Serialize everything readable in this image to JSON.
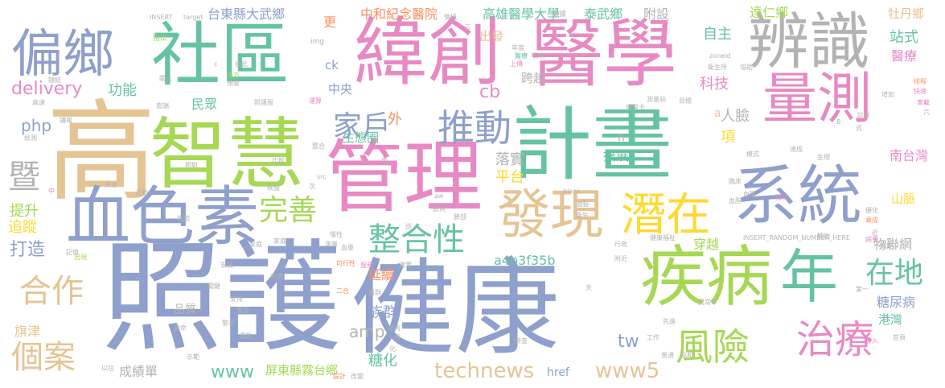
{
  "palette": [
    "#8ea0cb",
    "#a6d854",
    "#e78ac3",
    "#66c2a5",
    "#e5c494",
    "#b3b3b3",
    "#fc8d62",
    "#ffd92f"
  ],
  "words": {
    "zhaohu": "照護",
    "jiankang": "健康",
    "gao": "高",
    "guanli": "管理",
    "jihua": "計畫",
    "zhihui": "智慧",
    "shequ": "社區",
    "weichuang": "緯創",
    "yixue": "醫學",
    "bianshi": "辨識",
    "xuesesu": "血色素",
    "jibing": "疾病",
    "nian": "年",
    "xitong": "系統",
    "liangce": "量測",
    "pianxiang": "偏鄉",
    "faxian": "發現",
    "qianzai": "潛在",
    "zhengheixing": "整合性",
    "fengxian": "風險",
    "zhiliao": "治療",
    "tuidong": "推動",
    "jiahu": "家戶",
    "wanshan": "完善",
    "hezuo": "合作",
    "gean": "個案",
    "ji": "暨",
    "zaidi": "在地",
    "technews": "technews",
    "www5": "www5",
    "www": "www",
    "delivery": "delivery",
    "taidong_dawu": "台東縣大武鄉",
    "pingdong_wutai": "屏東縣霧台鄉",
    "gaoxiong_yixue": "高雄醫學大學",
    "zhonghe": "中和紀念醫院",
    "dazheng": "達仁鄉",
    "taiwu": "泰武鄉",
    "fushe": "附設",
    "mudan": "牡丹鄉",
    "zhanshi": "站式",
    "yiliao": "醫療",
    "zizhu": "自主",
    "keji": "科技",
    "renlian": "人臉",
    "xiang": "項",
    "nantaiwan": "南台灣",
    "shanmai": "山脈",
    "wulianwang": "物聯網",
    "tangniaobing": "糖尿病",
    "gangwan": "港灣",
    "zuqun": "族群",
    "yanxu": "延續",
    "tanghua": "糖化",
    "chengjidan": "成績單",
    "tishen": "提升",
    "zhuizong": "追蹤",
    "dazao": "打造",
    "gongneng": "功能",
    "minzhong": "民眾",
    "php": "php",
    "shengtaiquan": "生態圈",
    "wai": "外",
    "luoshi": "落實",
    "pingtai": "平台",
    "kuozhan": "擴展",
    "chuanyue": "穿越",
    "kuayue": "跨越",
    "chufa": "出發",
    "zhongyang": "中央",
    "cb": "cb",
    "amp": "amp",
    "a4b3f35b": "a4b3f35b",
    "tw": "tw",
    "qijin": "旗津",
    "pinzhi": "品質",
    "href": "href",
    "geng": "更",
    "ck": "ck",
    "n": "n",
    "a": "a",
    "insert": "INSERT",
    "target": "target",
    "img": "img",
    "insert_random": "INSERT_RANDOM_NUMBER_HERE",
    "blank": "_blank",
    "zoneid": "zoneid",
    "src": "src",
    "aw": "aw",
    "c_letter": "c",
    "b_letter": "B",
    "zhichu": "指出",
    "shujia": "數據",
    "qingjing": "情境",
    "san": "三",
    "nianbao": "年度",
    "richang": "日常",
    "shangchuan": "上傳",
    "yiliao_small": "醫療",
    "weisheng": "衛生所",
    "xiezhu": "協助",
    "kuaisu": "快速",
    "paicheng": "排程",
    "chegao": "車載",
    "liu": "六",
    "zengjia": "增加",
    "shi": "式",
    "dacheng": "達成",
    "shengli": "生理",
    "celiang": "測量站",
    "muzhuo": "目標",
    "jianbaoka": "健保卡",
    "yundong": "運算",
    "zhaohu_small": "照護服",
    "yuanfang": "遠方",
    "yujingqi": "預警",
    "youchu": "由此",
    "guanzhu": "關注",
    "lianjie": "鏈結",
    "gaosu": "高速",
    "nanduan": "南端",
    "huodong": "活動",
    "jiangbao": "講報",
    "jiance": "檢測",
    "zhenghe": "整合",
    "jifu": "疾服",
    "anzhuang": "安裝",
    "manxing": "慢性",
    "bianlian": "臉部",
    "xiaoyu": "中",
    "jiyi": "記憶",
    "fuwu": "服務",
    "sheji": "設計",
    "gaishan": "改變",
    "bingxin": "病患",
    "xingzheng": "行政",
    "jianfang": "健康福祉",
    "shishi": "實施",
    "xueliang": "血量",
    "jiating": "家庭",
    "kexingxing": "可行性",
    "jianli": "建置",
    "ercheng": "二合",
    "yiqun": "醫群",
    "jishu": "技術",
    "fujin": "附近",
    "jingshi": "警示",
    "gongzuo": "工作",
    "xiandao": "先進",
    "daoru": "導入",
    "putong": "普通",
    "tanhe": "檢查",
    "yichangpin": "異常率",
    "diyi": "第一",
    "zhenduan": "診斷",
    "youhua": "優化",
    "fangfa": "預防",
    "xueya": "血壓",
    "linchuang": "臨床",
    "yuanzhu": "乘成",
    "jin": "近",
    "bingshi": "病史",
    "shouye": "首頁",
    "yizhao": "以往",
    "shilu": "示範",
    "tian": "天",
    "yue": "月",
    "hua": "化",
    "shefu": "衛生",
    "youdian": "油脂",
    "mamo": "模式",
    "fuzhu": "輔助",
    "xiehe": "協和",
    "celiang2": "測量",
    "xuezhi": "血脂",
    "jiating2": "家庭",
    "ci": "次",
    "xun": "巡",
    "guize": "規範",
    "chuxian": "出現",
    "lianyong": "臉頁",
    "guanjian": "關鍵",
    "yongfu": "壽命",
    "wanquan": "完全",
    "xiangdui": "相對",
    "bijiao": "比較",
    "neng": "能",
    "anzhi": "安排",
    "zhongdian": "重點",
    "jiayuan": "家園"
  }
}
